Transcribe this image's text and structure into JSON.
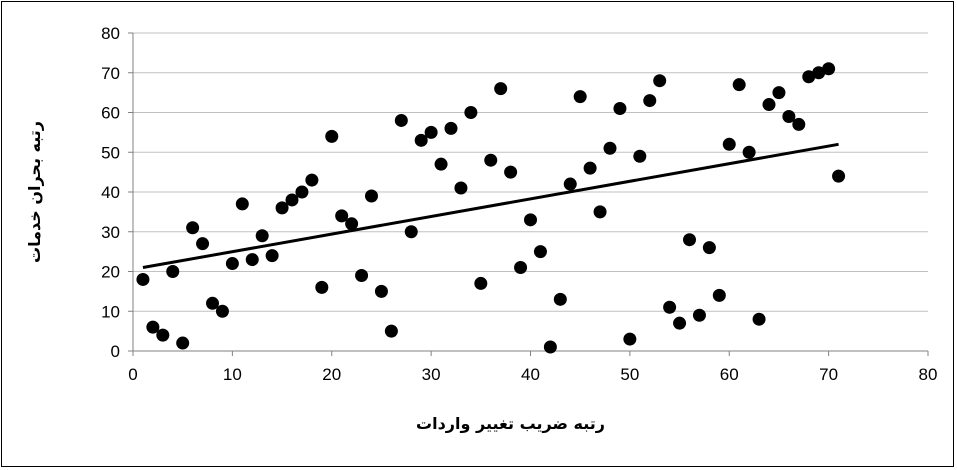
{
  "chart_data": {
    "type": "scatter",
    "title": "",
    "xlabel": "رتبه ضریب تغییر واردات",
    "ylabel": "رتبه بحران خدمات",
    "xlim": [
      0,
      80
    ],
    "ylim": [
      0,
      80
    ],
    "x_ticks": [
      0,
      10,
      20,
      30,
      40,
      50,
      60,
      70,
      80
    ],
    "y_ticks": [
      0,
      10,
      20,
      30,
      40,
      50,
      60,
      70,
      80
    ],
    "grid": {
      "horizontal": true,
      "vertical": false
    },
    "legend": "none",
    "trendline": {
      "type": "linear",
      "from": [
        1,
        21
      ],
      "to": [
        71,
        52
      ]
    },
    "colors": {
      "marker": "#000000",
      "trendline": "#000000",
      "gridline": "#c0c0c0",
      "axis": "#808080"
    },
    "series": [
      {
        "points": [
          [
            1,
            18
          ],
          [
            2,
            6
          ],
          [
            3,
            4
          ],
          [
            4,
            20
          ],
          [
            5,
            2
          ],
          [
            6,
            31
          ],
          [
            7,
            27
          ],
          [
            8,
            12
          ],
          [
            9,
            10
          ],
          [
            10,
            22
          ],
          [
            11,
            37
          ],
          [
            12,
            23
          ],
          [
            13,
            29
          ],
          [
            14,
            24
          ],
          [
            15,
            36
          ],
          [
            16,
            38
          ],
          [
            17,
            40
          ],
          [
            18,
            43
          ],
          [
            19,
            16
          ],
          [
            20,
            54
          ],
          [
            21,
            34
          ],
          [
            22,
            32
          ],
          [
            23,
            19
          ],
          [
            24,
            39
          ],
          [
            25,
            15
          ],
          [
            26,
            5
          ],
          [
            27,
            58
          ],
          [
            28,
            30
          ],
          [
            29,
            53
          ],
          [
            30,
            55
          ],
          [
            31,
            47
          ],
          [
            32,
            56
          ],
          [
            33,
            41
          ],
          [
            34,
            60
          ],
          [
            35,
            17
          ],
          [
            36,
            48
          ],
          [
            37,
            66
          ],
          [
            38,
            45
          ],
          [
            39,
            21
          ],
          [
            40,
            33
          ],
          [
            41,
            25
          ],
          [
            42,
            1
          ],
          [
            43,
            13
          ],
          [
            44,
            42
          ],
          [
            45,
            64
          ],
          [
            46,
            46
          ],
          [
            47,
            35
          ],
          [
            48,
            51
          ],
          [
            49,
            61
          ],
          [
            50,
            3
          ],
          [
            51,
            49
          ],
          [
            52,
            63
          ],
          [
            53,
            68
          ],
          [
            54,
            11
          ],
          [
            55,
            7
          ],
          [
            56,
            28
          ],
          [
            57,
            9
          ],
          [
            58,
            26
          ],
          [
            59,
            14
          ],
          [
            60,
            52
          ],
          [
            61,
            67
          ],
          [
            62,
            50
          ],
          [
            63,
            8
          ],
          [
            64,
            62
          ],
          [
            65,
            65
          ],
          [
            66,
            59
          ],
          [
            67,
            57
          ],
          [
            68,
            69
          ],
          [
            69,
            70
          ],
          [
            70,
            71
          ],
          [
            71,
            44
          ]
        ]
      }
    ]
  }
}
